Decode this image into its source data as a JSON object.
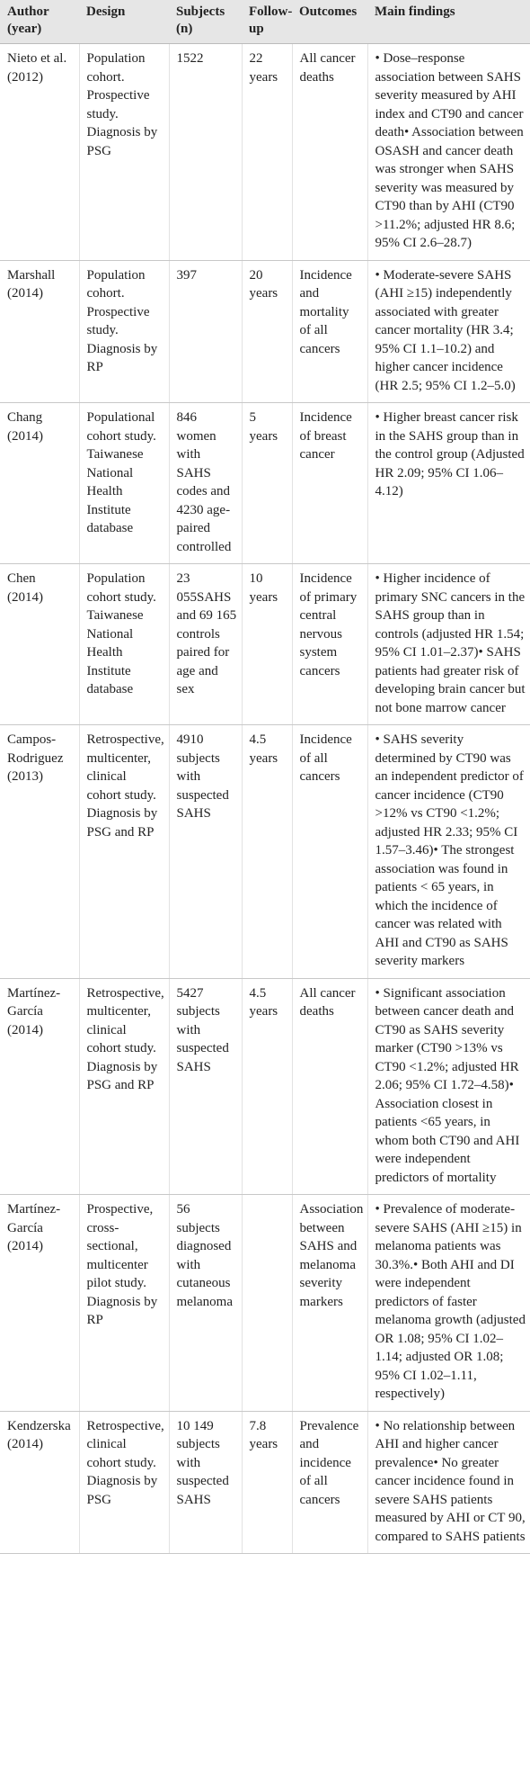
{
  "table": {
    "header": [
      "Author (year)",
      "Design",
      "Subjects (n)",
      "Follow-up",
      "Outcomes",
      "Main findings"
    ],
    "rows": [
      [
        "Nieto et al. (2012)",
        "Population cohort. Prospective study. Diagnosis by PSG",
        "1522",
        "22 years",
        "All cancer deaths",
        "• Dose–response association between SAHS severity measured by AHI index and CT90 and cancer death• Association between OSASH and cancer death was stronger when SAHS severity was measured by CT90 than by AHI (CT90 >11.2%; adjusted HR 8.6; 95% CI 2.6–28.7)"
      ],
      [
        "Marshall (2014)",
        "Population cohort. Prospective study. Diagnosis by RP",
        "397",
        "20 years",
        "Incidence and mortality of all cancers",
        "• Moderate-severe SAHS (AHI ≥15) independently associated with greater cancer mortality (HR 3.4; 95% CI 1.1–10.2) and higher cancer incidence (HR 2.5; 95% CI 1.2–5.0)"
      ],
      [
        "Chang (2014)",
        "Populational cohort study. Taiwanese National Health Institute database",
        "846 women with SAHS codes and 4230 age-paired controlled",
        "5 years",
        "Incidence of breast cancer",
        "• Higher breast cancer risk in the SAHS group than in the control group (Adjusted HR 2.09; 95% CI 1.06–4.12)"
      ],
      [
        "Chen (2014)",
        "Population cohort study. Taiwanese National Health Institute database",
        "23 055SAHS and 69 165 controls paired for age and sex",
        "10 years",
        "Incidence of primary central nervous system cancers",
        "• Higher incidence of primary SNC cancers in the SAHS group than in controls (adjusted HR 1.54; 95% CI 1.01–2.37)• SAHS patients had greater risk of developing brain cancer but not bone marrow cancer"
      ],
      [
        "Campos-Rodriguez (2013)",
        "Retrospective, multicenter, clinical cohort study. Diagnosis by PSG and RP",
        "4910 subjects with suspected SAHS",
        "4.5 years",
        "Incidence of all cancers",
        "• SAHS severity determined by CT90 was an independent predictor of cancer incidence (CT90 >12% vs CT90 <1.2%; adjusted HR 2.33; 95% CI 1.57–3.46)• The strongest association was found in patients < 65 years, in which the incidence of cancer was related with AHI and CT90 as SAHS severity markers"
      ],
      [
        "Martínez-García (2014)",
        "Retrospective, multicenter, clinical cohort study. Diagnosis by PSG and RP",
        "5427 subjects with suspected SAHS",
        "4.5 years",
        "All cancer deaths",
        "• Significant association between cancer death and CT90 as SAHS severity marker (CT90 >13% vs CT90 <1.2%; adjusted HR 2.06; 95% CI 1.72–4.58)• Association closest in patients <65 years, in whom both CT90 and AHI were independent predictors of mortality"
      ],
      [
        "Martínez-García (2014)",
        "Prospective, cross-sectional, multicenter pilot study. Diagnosis by RP",
        "56 subjects diagnosed with cutaneous melanoma",
        null,
        "Association between SAHS and melanoma severity markers",
        "• Prevalence of moderate-severe SAHS (AHI ≥15) in melanoma patients was 30.3%.• Both AHI and DI were independent predictors of faster melanoma growth (adjusted OR 1.08; 95% CI 1.02–1.14; adjusted OR 1.08; 95% CI 1.02–1.11, respectively)"
      ],
      [
        "Kendzerska (2014)",
        "Retrospective, clinical cohort study. Diagnosis by PSG",
        "10 149 subjects with suspected SAHS",
        "7.8 years",
        "Prevalence and incidence of all cancers",
        "• No relationship between AHI and higher cancer prevalence• No greater cancer incidence found in severe SAHS patients measured by AHI or CT 90, compared to SAHS patients"
      ]
    ]
  }
}
